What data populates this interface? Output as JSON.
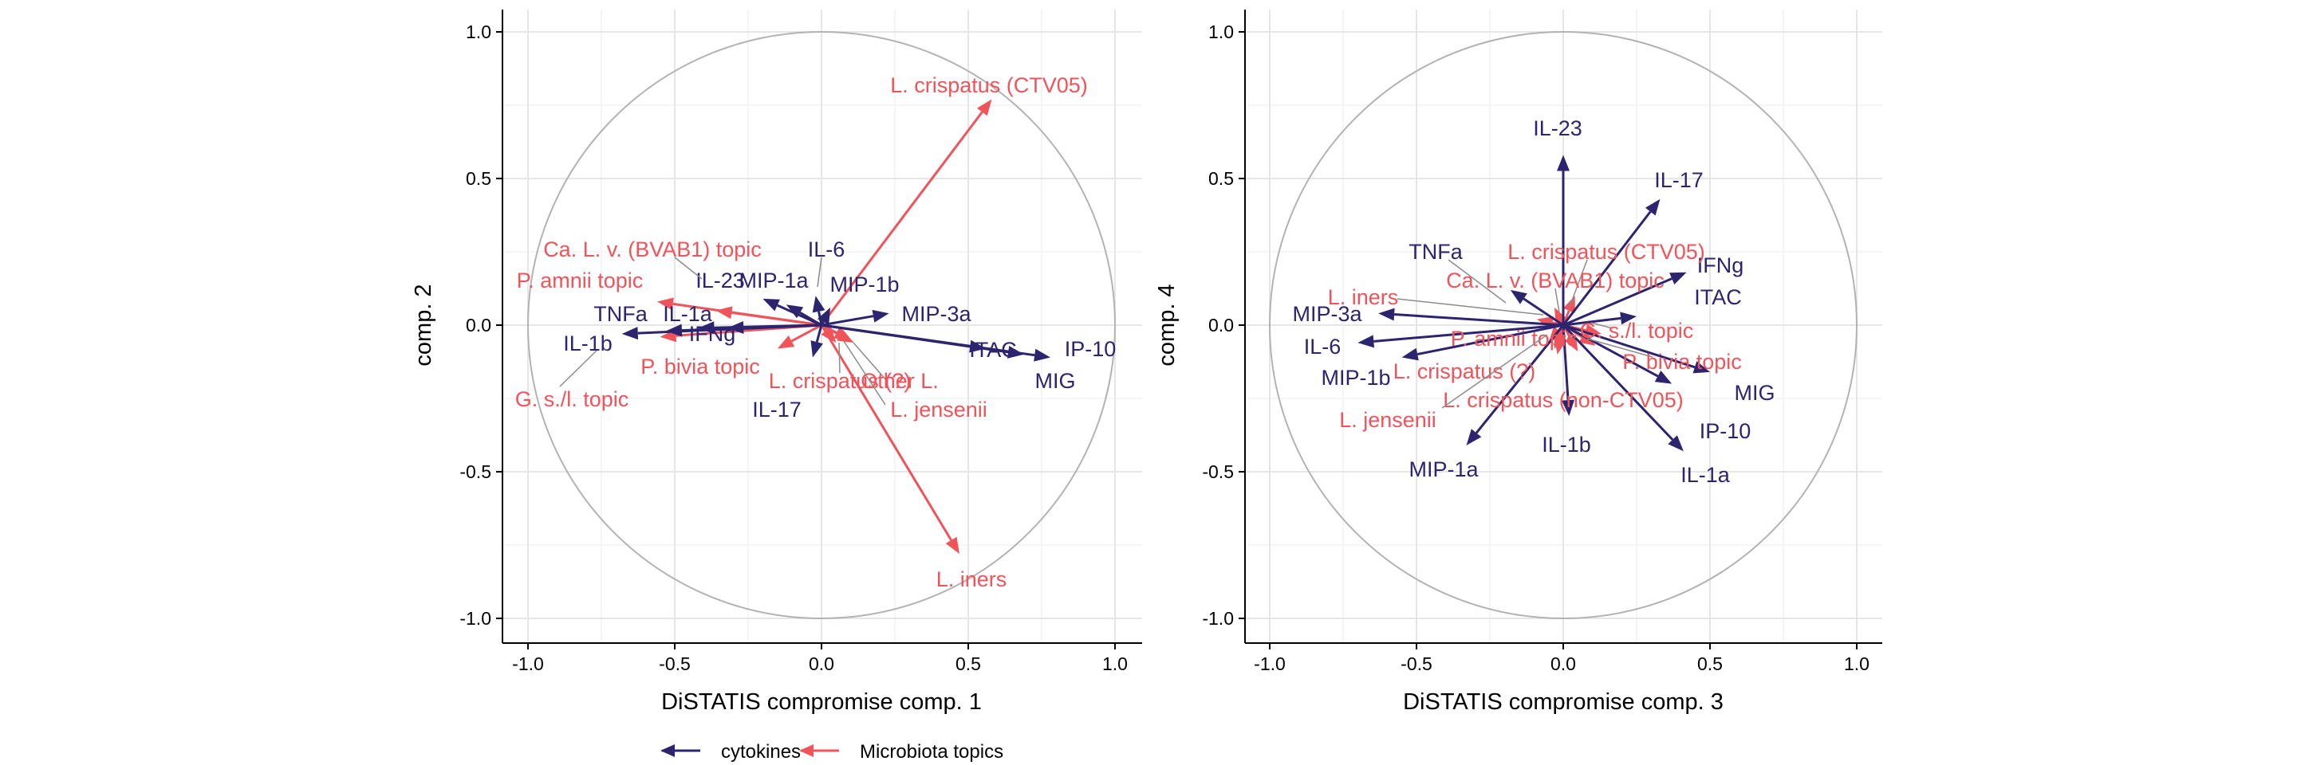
{
  "colors": {
    "cytokines": "#2D2470",
    "microbiota": "#F0545A",
    "grid": "#E6E6E6",
    "circle": "#B3B3B3",
    "leader": "#8C8C8C",
    "axis": "#000000"
  },
  "legend": {
    "cytokines": "cytokines",
    "microbiota": "Microbiota topics",
    "position": "bottom"
  },
  "chart_data": [
    {
      "type": "scatter",
      "subtype": "correlation-circle biplot with arrows",
      "title": "",
      "xlabel": "DiSTATIS compromise comp. 1",
      "ylabel": "comp. 2",
      "xlim": [
        -1.0,
        1.0
      ],
      "ylim": [
        -1.0,
        1.0
      ],
      "xticks": [
        -1.0,
        -0.5,
        0.0,
        0.5,
        1.0
      ],
      "yticks": [
        -1.0,
        -0.5,
        0.0,
        0.5,
        1.0
      ],
      "xtick_labels": [
        "-1.0",
        "-0.5",
        "0.0",
        "0.5",
        "1.0"
      ],
      "ytick_labels": [
        "-1.0",
        "-0.5",
        "0.0",
        "0.5",
        "1.0"
      ],
      "grid": true,
      "unit_circle": true,
      "series": [
        {
          "name": "cytokines",
          "points": [
            {
              "label": "IL-6",
              "x": -0.02,
              "y": 0.1
            },
            {
              "label": "IL-23",
              "x": -0.12,
              "y": 0.07
            },
            {
              "label": "MIP-1a",
              "x": -0.2,
              "y": 0.09
            },
            {
              "label": "MIP-1b",
              "x": 0.03,
              "y": 0.06
            },
            {
              "label": "MIP-3a",
              "x": 0.23,
              "y": 0.04
            },
            {
              "label": "TNFa",
              "x": -0.53,
              "y": -0.02
            },
            {
              "label": "IL-1a",
              "x": -0.42,
              "y": -0.01
            },
            {
              "label": "IL-1b",
              "x": -0.68,
              "y": -0.03
            },
            {
              "label": "IFNg",
              "x": -0.32,
              "y": -0.01
            },
            {
              "label": "ITAC",
              "x": 0.56,
              "y": -0.08
            },
            {
              "label": "IP-10",
              "x": 0.78,
              "y": -0.11
            },
            {
              "label": "MIG",
              "x": 0.69,
              "y": -0.1
            },
            {
              "label": "IL-17",
              "x": -0.03,
              "y": -0.11
            }
          ]
        },
        {
          "name": "Microbiota topics",
          "points": [
            {
              "label": "L. crispatus (CTV05)",
              "x": 0.58,
              "y": 0.77
            },
            {
              "label": "L. iners",
              "x": 0.47,
              "y": -0.78
            },
            {
              "label": "Ca. L. v. (BVAB1) topic",
              "x": -0.36,
              "y": 0.05
            },
            {
              "label": "P. amnii topic",
              "x": -0.56,
              "y": 0.08
            },
            {
              "label": "P. bivia topic",
              "x": -0.15,
              "y": -0.08
            },
            {
              "label": "G. s./l. topic",
              "x": -0.55,
              "y": -0.04
            },
            {
              "label": "L. crispatus (?)",
              "x": 0.05,
              "y": -0.06
            },
            {
              "label": "Other L.",
              "x": 0.11,
              "y": -0.06
            },
            {
              "label": "L. jensenii",
              "x": 0.1,
              "y": -0.05
            }
          ]
        }
      ]
    },
    {
      "type": "scatter",
      "subtype": "correlation-circle biplot with arrows",
      "title": "",
      "xlabel": "DiSTATIS compromise comp. 3",
      "ylabel": "comp. 4",
      "xlim": [
        -1.0,
        1.0
      ],
      "ylim": [
        -1.0,
        1.0
      ],
      "xticks": [
        -1.0,
        -0.5,
        0.0,
        0.5,
        1.0
      ],
      "yticks": [
        -1.0,
        -0.5,
        0.0,
        0.5,
        1.0
      ],
      "xtick_labels": [
        "-1.0",
        "-0.5",
        "0.0",
        "0.5",
        "1.0"
      ],
      "ytick_labels": [
        "-1.0",
        "-0.5",
        "0.0",
        "0.5",
        "1.0"
      ],
      "grid": true,
      "unit_circle": true,
      "series": [
        {
          "name": "cytokines",
          "points": [
            {
              "label": "IL-23",
              "x": 0.0,
              "y": 0.58
            },
            {
              "label": "IL-17",
              "x": 0.33,
              "y": 0.43
            },
            {
              "label": "IFNg",
              "x": 0.42,
              "y": 0.18
            },
            {
              "label": "ITAC",
              "x": 0.25,
              "y": 0.03
            },
            {
              "label": "MIP-3a",
              "x": -0.63,
              "y": 0.04
            },
            {
              "label": "IL-6",
              "x": -0.7,
              "y": -0.06
            },
            {
              "label": "MIP-1b",
              "x": -0.55,
              "y": -0.11
            },
            {
              "label": "MIP-1a",
              "x": -0.33,
              "y": -0.41
            },
            {
              "label": "IL-1b",
              "x": 0.02,
              "y": -0.31
            },
            {
              "label": "IL-1a",
              "x": 0.41,
              "y": -0.43
            },
            {
              "label": "IP-10",
              "x": 0.37,
              "y": -0.2
            },
            {
              "label": "MIG",
              "x": 0.5,
              "y": -0.16
            },
            {
              "label": "TNFa",
              "x": -0.18,
              "y": 0.12
            }
          ]
        },
        {
          "name": "Microbiota topics",
          "points": [
            {
              "label": "L. crispatus (CTV05)",
              "x": 0.04,
              "y": 0.1
            },
            {
              "label": "Ca. L. v. (BVAB1) topic",
              "x": -0.03,
              "y": 0.06
            },
            {
              "label": "L. iners",
              "x": -0.09,
              "y": 0.02
            },
            {
              "label": "P. amnii topic",
              "x": -0.05,
              "y": -0.06
            },
            {
              "label": "L. crispatus (?)",
              "x": -0.03,
              "y": -0.08
            },
            {
              "label": "G. s./l. topic",
              "x": 0.13,
              "y": -0.03
            },
            {
              "label": "P. bivia topic",
              "x": 0.11,
              "y": -0.07
            },
            {
              "label": "L. crispatus (non-CTV05)",
              "x": 0.05,
              "y": -0.09
            },
            {
              "label": "L. jensenii",
              "x": -0.02,
              "y": -0.1
            }
          ]
        }
      ]
    }
  ]
}
